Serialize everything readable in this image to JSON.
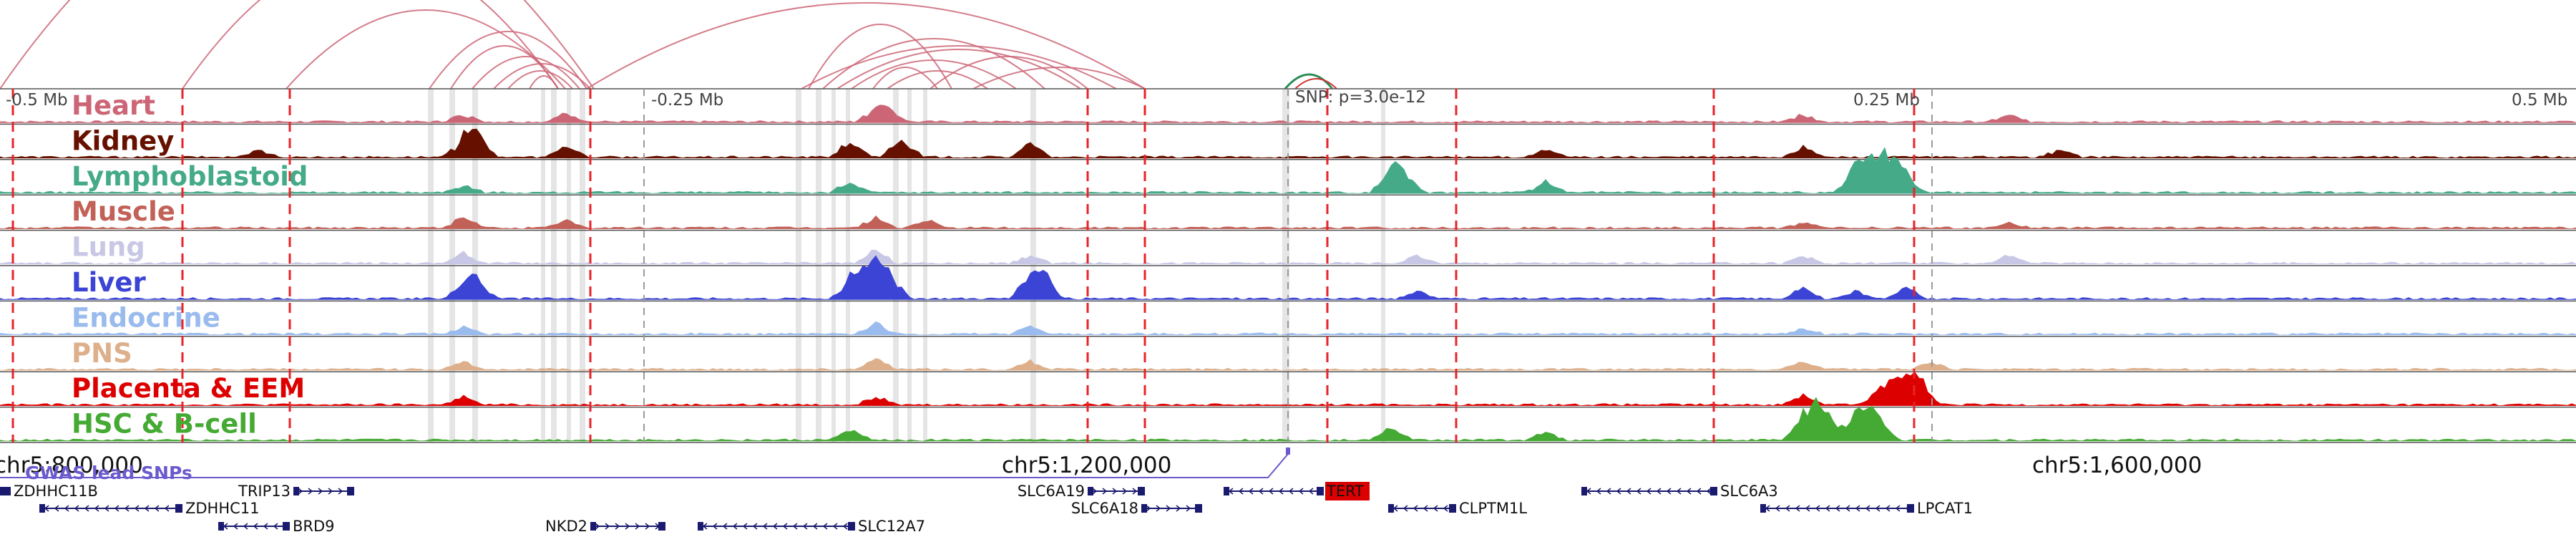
{
  "scale": {
    "left": "-0.5 Mb",
    "mid_left": "-0.25 Mb",
    "mid_right": "0.25 Mb",
    "right": "0.5 Mb"
  },
  "snp_label": "SNP: p=3.0e-12",
  "coords": {
    "c1": "chr5:800,000",
    "c2": "chr5:1,200,000",
    "c3": "chr5:1,600,000"
  },
  "gwas_label": "GWAS lead SNPs",
  "tracks": [
    {
      "name": "Heart",
      "color": "#cc6677",
      "peaks": [
        [
          0.18,
          0.3
        ],
        [
          0.22,
          0.35
        ],
        [
          0.34,
          0.5
        ],
        [
          0.345,
          0.45
        ],
        [
          0.7,
          0.3
        ],
        [
          0.78,
          0.25
        ]
      ]
    },
    {
      "name": "Kidney",
      "color": "#661100",
      "peaks": [
        [
          0.1,
          0.3
        ],
        [
          0.18,
          0.6
        ],
        [
          0.185,
          0.8
        ],
        [
          0.22,
          0.5
        ],
        [
          0.33,
          0.6
        ],
        [
          0.35,
          0.8
        ],
        [
          0.4,
          0.5
        ],
        [
          0.6,
          0.3
        ],
        [
          0.7,
          0.4
        ],
        [
          0.8,
          0.3
        ]
      ]
    },
    {
      "name": "Lymphoblastoid",
      "color": "#44aa88",
      "peaks": [
        [
          0.18,
          0.3
        ],
        [
          0.33,
          0.4
        ],
        [
          0.54,
          0.9
        ],
        [
          0.545,
          0.7
        ],
        [
          0.6,
          0.4
        ],
        [
          0.72,
          0.8
        ],
        [
          0.725,
          0.9
        ],
        [
          0.73,
          1.0
        ],
        [
          0.735,
          0.8
        ],
        [
          0.74,
          0.6
        ]
      ]
    },
    {
      "name": "Muscle",
      "color": "#c26158",
      "peaks": [
        [
          0.18,
          0.4
        ],
        [
          0.22,
          0.3
        ],
        [
          0.34,
          0.4
        ],
        [
          0.36,
          0.3
        ],
        [
          0.7,
          0.2
        ],
        [
          0.78,
          0.2
        ]
      ]
    },
    {
      "name": "Lung",
      "color": "#c8c8e6",
      "peaks": [
        [
          0.18,
          0.4
        ],
        [
          0.34,
          0.5
        ],
        [
          0.4,
          0.3
        ],
        [
          0.55,
          0.3
        ],
        [
          0.7,
          0.3
        ],
        [
          0.78,
          0.3
        ]
      ]
    },
    {
      "name": "Liver",
      "color": "#3b44d4",
      "peaks": [
        [
          0.18,
          0.5
        ],
        [
          0.185,
          0.7
        ],
        [
          0.33,
          0.6
        ],
        [
          0.335,
          0.8
        ],
        [
          0.34,
          0.9
        ],
        [
          0.345,
          1.0
        ],
        [
          0.4,
          0.8
        ],
        [
          0.405,
          0.9
        ],
        [
          0.55,
          0.3
        ],
        [
          0.7,
          0.4
        ],
        [
          0.72,
          0.3
        ],
        [
          0.74,
          0.4
        ]
      ]
    },
    {
      "name": "Endocrine",
      "color": "#99bbee",
      "peaks": [
        [
          0.18,
          0.3
        ],
        [
          0.34,
          0.4
        ],
        [
          0.4,
          0.3
        ],
        [
          0.7,
          0.2
        ]
      ]
    },
    {
      "name": "PNS",
      "color": "#ddb08b",
      "peaks": [
        [
          0.18,
          0.3
        ],
        [
          0.34,
          0.4
        ],
        [
          0.4,
          0.3
        ],
        [
          0.7,
          0.3
        ],
        [
          0.75,
          0.3
        ]
      ]
    },
    {
      "name": "Placenta & EEM",
      "color": "#dd0000",
      "peaks": [
        [
          0.18,
          0.3
        ],
        [
          0.34,
          0.3
        ],
        [
          0.7,
          0.4
        ],
        [
          0.73,
          0.6
        ],
        [
          0.735,
          0.5
        ],
        [
          0.74,
          1.0
        ],
        [
          0.745,
          0.8
        ]
      ]
    },
    {
      "name": "HSC & B-cell",
      "color": "#44aa33",
      "peaks": [
        [
          0.33,
          0.4
        ],
        [
          0.54,
          0.5
        ],
        [
          0.6,
          0.3
        ],
        [
          0.7,
          0.8
        ],
        [
          0.705,
          0.9
        ],
        [
          0.71,
          0.7
        ],
        [
          0.72,
          0.8
        ],
        [
          0.725,
          0.9
        ],
        [
          0.73,
          0.6
        ]
      ]
    }
  ],
  "genes": [
    {
      "name": "ZDHHC11B",
      "start": 0,
      "end": 15,
      "row": 0,
      "strand": "-",
      "label_side": "right"
    },
    {
      "name": "TRIP13",
      "start": 410,
      "end": 495,
      "row": 0,
      "strand": "+",
      "label_side": "left"
    },
    {
      "name": "SLC6A19",
      "start": 1520,
      "end": 1600,
      "row": 0,
      "strand": "+",
      "label_side": "left"
    },
    {
      "name": "TERT",
      "start": 1710,
      "end": 1850,
      "row": 0,
      "strand": "-",
      "label_side": "right",
      "highlight": true
    },
    {
      "name": "SLC6A3",
      "start": 2210,
      "end": 2400,
      "row": 0,
      "strand": "-",
      "label_side": "right"
    },
    {
      "name": "ZDHHC11",
      "start": 55,
      "end": 255,
      "row": 1,
      "strand": "-",
      "label_side": "right"
    },
    {
      "name": "SLC6A18",
      "start": 1595,
      "end": 1680,
      "row": 1,
      "strand": "+",
      "label_side": "left"
    },
    {
      "name": "CLPTM1L",
      "start": 1940,
      "end": 2035,
      "row": 1,
      "strand": "-",
      "label_side": "right"
    },
    {
      "name": "LPCAT1",
      "start": 2460,
      "end": 2675,
      "row": 1,
      "strand": "-",
      "label_side": "right"
    },
    {
      "name": "BRD9",
      "start": 305,
      "end": 405,
      "row": 2,
      "strand": "-",
      "label_side": "right"
    },
    {
      "name": "NKD2",
      "start": 825,
      "end": 930,
      "row": 2,
      "strand": "+",
      "label_side": "left"
    },
    {
      "name": "SLC12A7",
      "start": 975,
      "end": 1195,
      "row": 2,
      "strand": "-",
      "label_side": "right"
    }
  ]
}
